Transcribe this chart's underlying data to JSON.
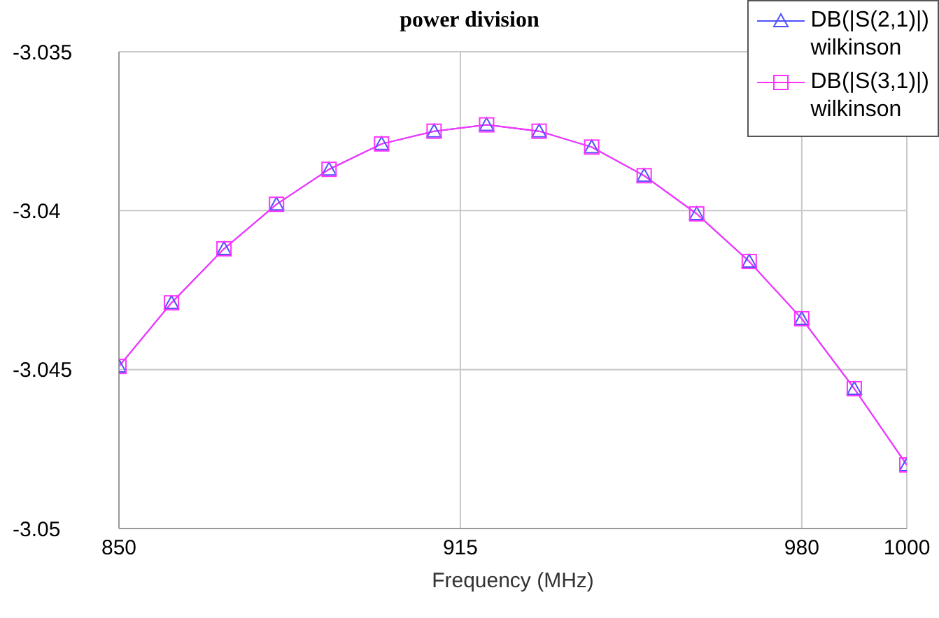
{
  "chart_data": {
    "type": "line",
    "title": "power division",
    "xlabel": "Frequency (MHz)",
    "x": [
      850,
      860,
      870,
      880,
      890,
      900,
      910,
      920,
      930,
      940,
      950,
      960,
      970,
      980,
      990,
      1000
    ],
    "series": [
      {
        "name": "DB(|S(2,1)|)\nwilkinson",
        "color": "#5050ff",
        "marker": "triangle",
        "values": [
          -3.0449,
          -3.0429,
          -3.0412,
          -3.0398,
          -3.0387,
          -3.0379,
          -3.0375,
          -3.0373,
          -3.0375,
          -3.038,
          -3.0389,
          -3.0401,
          -3.0416,
          -3.0434,
          -3.0456,
          -3.048
        ]
      },
      {
        "name": "DB(|S(3,1)|)\nwilkinson",
        "color": "#ff33ff",
        "marker": "square",
        "values": [
          -3.0449,
          -3.0429,
          -3.0412,
          -3.0398,
          -3.0387,
          -3.0379,
          -3.0375,
          -3.0373,
          -3.0375,
          -3.038,
          -3.0389,
          -3.0401,
          -3.0416,
          -3.0434,
          -3.0456,
          -3.048
        ]
      }
    ],
    "xlim": [
      850,
      1000
    ],
    "xticks": [
      850,
      915,
      980,
      1000
    ],
    "ylim": [
      -3.05,
      -3.035
    ],
    "yticks": [
      -3.05,
      -3.045,
      -3.04,
      -3.035
    ],
    "grid": true,
    "legend": "top right",
    "line_style": "solid"
  }
}
